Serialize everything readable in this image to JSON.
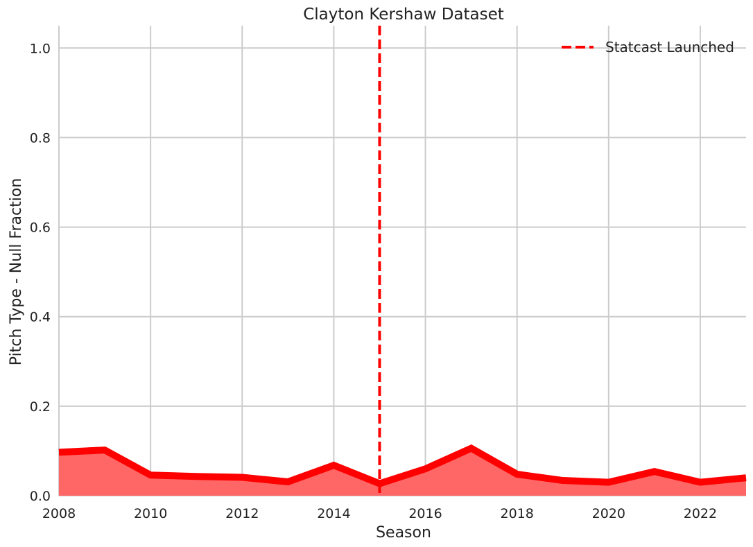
{
  "chart_data": {
    "type": "area",
    "title": "Clayton Kershaw Dataset",
    "xlabel": "Season",
    "ylabel": "Pitch Type - Null Fraction",
    "xlim": [
      2008,
      2023
    ],
    "ylim": [
      0.0,
      1.05
    ],
    "x_ticks": [
      2008,
      2010,
      2012,
      2014,
      2016,
      2018,
      2020,
      2022
    ],
    "y_ticks": [
      0.0,
      0.2,
      0.4,
      0.6,
      0.8,
      1.0
    ],
    "x_tick_labels": [
      "2008",
      "2010",
      "2012",
      "2014",
      "2016",
      "2018",
      "2020",
      "2022"
    ],
    "y_tick_labels": [
      "0.0",
      "0.2",
      "0.4",
      "0.6",
      "0.8",
      "1.0"
    ],
    "grid": true,
    "series": [
      {
        "color": "#ff0000",
        "fill_color": "#ff6666",
        "x": [
          2008,
          2009,
          2010,
          2011,
          2012,
          2013,
          2014,
          2015,
          2016,
          2017,
          2018,
          2019,
          2020,
          2021,
          2022,
          2023
        ],
        "values": [
          0.097,
          0.102,
          0.046,
          0.043,
          0.041,
          0.031,
          0.068,
          0.027,
          0.06,
          0.106,
          0.048,
          0.034,
          0.03,
          0.054,
          0.03,
          0.04
        ]
      }
    ],
    "annotations": [
      {
        "type": "vline",
        "x": 2015,
        "color": "#ff0000",
        "style": "dashed",
        "label": "Statcast Launched"
      }
    ],
    "legend": {
      "placement": "top-right",
      "entries": [
        "Statcast Launched"
      ]
    }
  }
}
